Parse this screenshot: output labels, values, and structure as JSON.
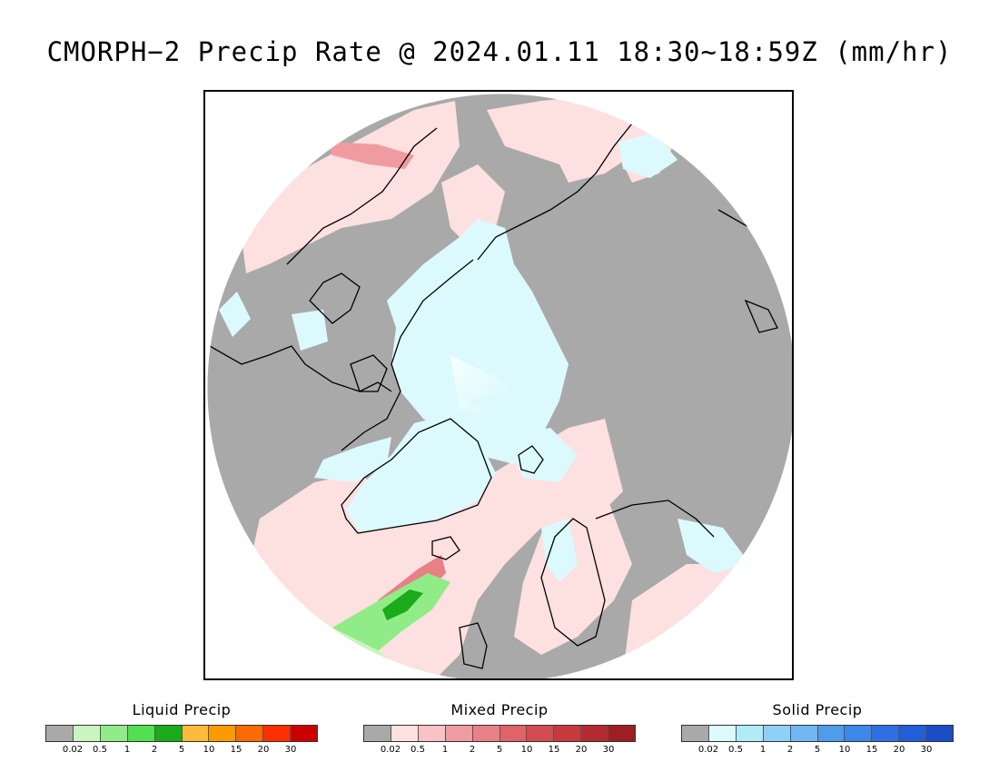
{
  "title": "CMORPH−2 Precip Rate @ 2024.01.11 18:30~18:59Z (mm/hr)",
  "map": {
    "projection": "north polar stereographic",
    "colors": {
      "no_precip": "#a9a9a9",
      "mixed_light": "#fde0e0",
      "solid_light": "#dcfafd",
      "coastline": "#000000",
      "background": "#ffffff"
    }
  },
  "legends": [
    {
      "title": "Liquid Precip",
      "colors": [
        "#a9a9a9",
        "#c8f5c0",
        "#90ec86",
        "#50e050",
        "#1aaa1a",
        "#fdbb3c",
        "#fd9a00",
        "#fd6a00",
        "#fd3000",
        "#cc0000"
      ],
      "ticks": [
        "0.02",
        "0.5",
        "1",
        "2",
        "5",
        "10",
        "15",
        "20",
        "30"
      ]
    },
    {
      "title": "Mixed Precip",
      "colors": [
        "#a9a9a9",
        "#fde0e0",
        "#f9c2c4",
        "#f09ba0",
        "#e88085",
        "#e06367",
        "#d44c50",
        "#c63a3e",
        "#b52a2e",
        "#9e1e22"
      ],
      "ticks": [
        "0.02",
        "0.5",
        "1",
        "2",
        "5",
        "10",
        "15",
        "20",
        "30"
      ]
    },
    {
      "title": "Solid Precip",
      "colors": [
        "#a9a9a9",
        "#dcfafd",
        "#b0ecf8",
        "#8fd0f6",
        "#70b6f2",
        "#4f9cec",
        "#3d86ea",
        "#2e70e4",
        "#225ed8",
        "#1a4ec8"
      ],
      "ticks": [
        "0.02",
        "0.5",
        "1",
        "2",
        "5",
        "10",
        "15",
        "20",
        "30"
      ]
    }
  ]
}
